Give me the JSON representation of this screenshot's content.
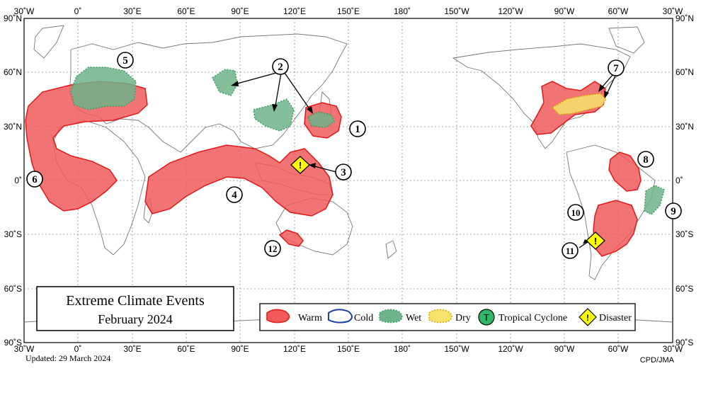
{
  "map": {
    "title": "Extreme Climate Events",
    "period": "February 2024",
    "updated": "Updated:  29 March 2024",
    "credit": "CPD/JMA",
    "colors": {
      "warm_fill": "#f05a5a",
      "warm_stroke": "#e31818",
      "wet_fill": "#6fb38a",
      "wet_stroke": "#3a9e5c",
      "dry_fill": "#f7e36b",
      "dry_stroke": "#d4a200",
      "cold_stroke": "#1a3fa0",
      "diamond": "#ffff00"
    }
  },
  "axes": {
    "lon_top": [
      "30˚W",
      "0˚",
      "30˚E",
      "60˚E",
      "90˚E",
      "120˚E",
      "150˚E",
      "180˚",
      "150˚W",
      "120˚W",
      "90˚W",
      "60˚W",
      "30˚W"
    ],
    "lon_bottom": [
      "30˚W",
      "0˚",
      "30˚E",
      "60˚E",
      "90˚E",
      "120˚E",
      "150˚E",
      "180˚",
      "150˚W",
      "120˚W",
      "90˚W",
      "60˚W",
      "30˚W"
    ],
    "lat_left": [
      "90˚N",
      "60˚N",
      "30˚N",
      "0˚",
      "30˚S",
      "60˚S",
      "90˚S"
    ],
    "lat_right": [
      "90˚N",
      "60˚N",
      "30˚N",
      "0˚",
      "30˚S",
      "60˚S",
      "90˚S"
    ]
  },
  "events": [
    "1",
    "2",
    "3",
    "4",
    "5",
    "6",
    "7",
    "8",
    "9",
    "10",
    "11",
    "12"
  ],
  "diamond_symbol": "!",
  "legend": {
    "warm": "Warm",
    "cold": "Cold",
    "wet": "Wet",
    "dry": "Dry",
    "tc_symbol": "T",
    "tropical_cyclone": "Tropical  Cyclone",
    "disaster_symbol": "!",
    "disaster": "Disaster"
  }
}
